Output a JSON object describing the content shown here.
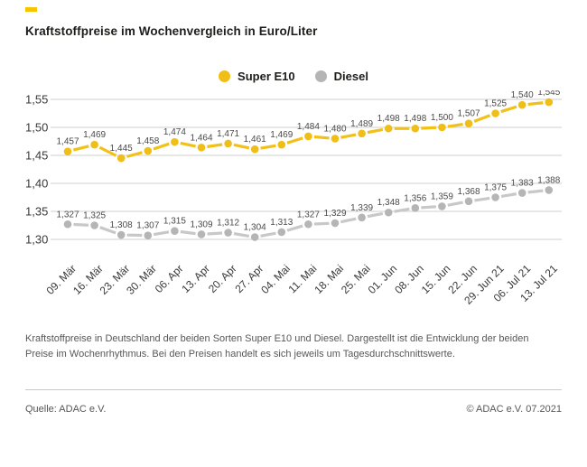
{
  "header": {
    "title": "Kraftstoffpreise im Wochenvergleich in Euro/Liter"
  },
  "colors": {
    "brand_accent": "#f6c500",
    "grid": "#cfcfcf",
    "axis_text": "#3a3a3a",
    "value_label_text": "#4a4a4a",
    "muted_text": "#575756"
  },
  "chart_data": {
    "type": "line",
    "title": "Kraftstoffpreise im Wochenvergleich in Euro/Liter",
    "xlabel": "",
    "ylabel": "Euro/Liter",
    "ylim": [
      1.3,
      1.55
    ],
    "ytick_step": 0.05,
    "grid": "horizontal",
    "legend_position": "top-center",
    "decimal_separator": ",",
    "categories": [
      "09. Mär",
      "16. Mär",
      "23. Mär",
      "30. Mär",
      "06. Apr",
      "13. Apr",
      "20. Apr",
      "27. Apr",
      "04. Mai",
      "11. Mai",
      "18. Mai",
      "25. Mai",
      "01. Jun",
      "08. Jun",
      "15. Jun",
      "22. Jun",
      "29. Jun 21",
      "06. Jul 21",
      "13. Jul 21"
    ],
    "series": [
      {
        "name": "Super E10",
        "color": "#f2c118",
        "marker_color": "#f0be16",
        "values": [
          1.457,
          1.469,
          1.445,
          1.458,
          1.474,
          1.464,
          1.471,
          1.461,
          1.469,
          1.484,
          1.48,
          1.489,
          1.498,
          1.498,
          1.5,
          1.507,
          1.525,
          1.54,
          1.545
        ]
      },
      {
        "name": "Diesel",
        "color": "#c8c8c8",
        "marker_color": "#b5b5b5",
        "values": [
          1.327,
          1.325,
          1.308,
          1.307,
          1.315,
          1.309,
          1.312,
          1.304,
          1.313,
          1.327,
          1.329,
          1.339,
          1.348,
          1.356,
          1.359,
          1.368,
          1.375,
          1.383,
          1.388
        ]
      }
    ]
  },
  "footnote": {
    "text": "Kraftstoffpreise in Deutschland der beiden Sorten Super E10 und Diesel. Dargestellt ist die Entwicklung der beiden Preise im Wochenrhythmus. Bei den Preisen handelt es sich jeweils um Tagesdurchschnittswerte."
  },
  "footer": {
    "source": "Quelle: ADAC e.V.",
    "copyright": "© ADAC e.V. 07.2021"
  }
}
